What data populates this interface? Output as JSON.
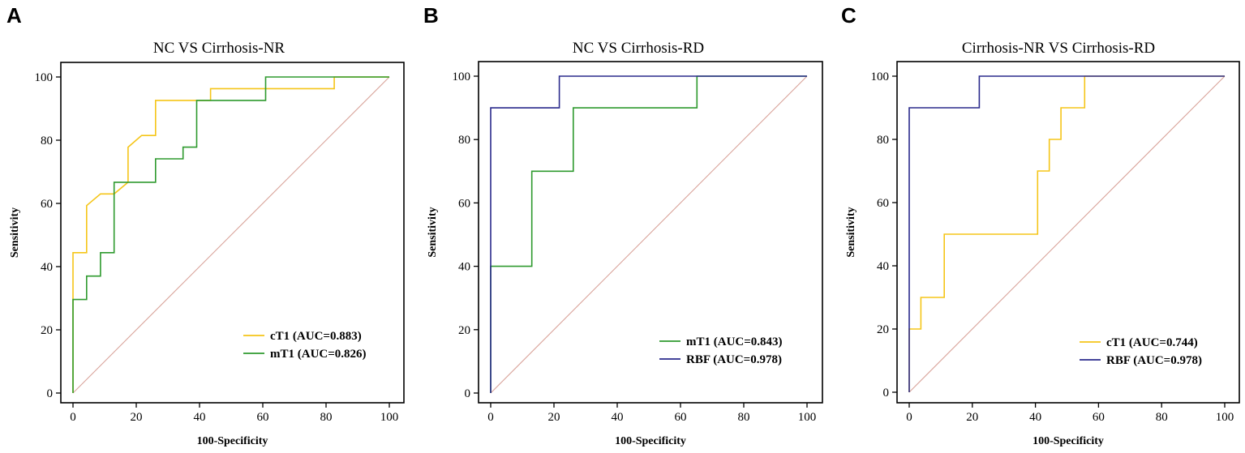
{
  "colors": {
    "cT1": "#f5c518",
    "mT1": "#2e9a2e",
    "RBF": "#2a2a8c",
    "reference": "#d9a39a",
    "axis": "#000000"
  },
  "chart_data": [
    {
      "type": "line",
      "panel": "A",
      "title": "NC VS Cirrhosis-NR",
      "xlabel": "100-Specificity",
      "ylabel": "Sensitivity",
      "xlim": [
        0,
        100
      ],
      "ylim": [
        0,
        100
      ],
      "xticks": [
        "0",
        "20",
        "40",
        "60",
        "80",
        "100"
      ],
      "yticks": [
        "0",
        "20",
        "40",
        "60",
        "80",
        "100"
      ],
      "reference_line": true,
      "series": [
        {
          "name": "cT1",
          "legend": "cT1 (AUC=0.883)",
          "color_key": "cT1",
          "points": [
            [
              0,
              0
            ],
            [
              0,
              30
            ],
            [
              0,
              44.4
            ],
            [
              4.3,
              44.4
            ],
            [
              4.3,
              59.3
            ],
            [
              8.7,
              63
            ],
            [
              13,
              63
            ],
            [
              17.4,
              66.7
            ],
            [
              17.4,
              77.8
            ],
            [
              21.7,
              81.5
            ],
            [
              26.1,
              81.5
            ],
            [
              26.1,
              92.6
            ],
            [
              43.5,
              92.6
            ],
            [
              43.5,
              96.3
            ],
            [
              82.6,
              96.3
            ],
            [
              82.6,
              100
            ],
            [
              100,
              100
            ]
          ]
        },
        {
          "name": "mT1",
          "legend": "mT1 (AUC=0.826)",
          "color_key": "mT1",
          "points": [
            [
              0,
              0
            ],
            [
              0,
              29.6
            ],
            [
              4.3,
              29.6
            ],
            [
              4.3,
              37
            ],
            [
              8.7,
              37
            ],
            [
              8.7,
              44.4
            ],
            [
              13,
              44.4
            ],
            [
              13,
              66.7
            ],
            [
              26.1,
              66.7
            ],
            [
              26.1,
              74.1
            ],
            [
              34.8,
              74.1
            ],
            [
              34.8,
              77.8
            ],
            [
              39.1,
              77.8
            ],
            [
              39.1,
              92.6
            ],
            [
              60.9,
              92.6
            ],
            [
              60.9,
              100
            ],
            [
              100,
              100
            ]
          ]
        }
      ]
    },
    {
      "type": "line",
      "panel": "B",
      "title": "NC VS Cirrhosis-RD",
      "xlabel": "100-Specificity",
      "ylabel": "Sensitivity",
      "xlim": [
        0,
        100
      ],
      "ylim": [
        0,
        100
      ],
      "xticks": [
        "0",
        "20",
        "40",
        "60",
        "80",
        "100"
      ],
      "yticks": [
        "0",
        "20",
        "40",
        "60",
        "80",
        "100"
      ],
      "reference_line": true,
      "series": [
        {
          "name": "mT1",
          "legend": "mT1 (AUC=0.843)",
          "color_key": "mT1",
          "points": [
            [
              0,
              0
            ],
            [
              0,
              40
            ],
            [
              13,
              40
            ],
            [
              13,
              70
            ],
            [
              26.1,
              70
            ],
            [
              26.1,
              90
            ],
            [
              65.2,
              90
            ],
            [
              65.2,
              100
            ],
            [
              100,
              100
            ]
          ]
        },
        {
          "name": "RBF",
          "legend": "RBF (AUC=0.978)",
          "color_key": "RBF",
          "points": [
            [
              0,
              0
            ],
            [
              0,
              90
            ],
            [
              21.7,
              90
            ],
            [
              21.7,
              100
            ],
            [
              100,
              100
            ]
          ]
        }
      ]
    },
    {
      "type": "line",
      "panel": "C",
      "title": "Cirrhosis-NR VS Cirrhosis-RD",
      "xlabel": "100-Specificity",
      "ylabel": "Sensitivity",
      "xlim": [
        0,
        100
      ],
      "ylim": [
        0,
        100
      ],
      "xticks": [
        "0",
        "20",
        "40",
        "60",
        "80",
        "100"
      ],
      "yticks": [
        "0",
        "20",
        "40",
        "60",
        "80",
        "100"
      ],
      "reference_line": true,
      "series": [
        {
          "name": "cT1",
          "legend": "cT1 (AUC=0.744)",
          "color_key": "cT1",
          "points": [
            [
              0,
              0
            ],
            [
              0,
              20
            ],
            [
              3.7,
              20
            ],
            [
              3.7,
              30
            ],
            [
              11.1,
              30
            ],
            [
              11.1,
              50
            ],
            [
              40.7,
              50
            ],
            [
              40.7,
              70
            ],
            [
              44.4,
              70
            ],
            [
              44.4,
              80
            ],
            [
              48.1,
              80
            ],
            [
              48.1,
              90
            ],
            [
              55.6,
              90
            ],
            [
              55.6,
              100
            ],
            [
              100,
              100
            ]
          ]
        },
        {
          "name": "RBF",
          "legend": "RBF (AUC=0.978)",
          "color_key": "RBF",
          "points": [
            [
              0,
              0
            ],
            [
              0,
              90
            ],
            [
              22.2,
              90
            ],
            [
              22.2,
              100
            ],
            [
              100,
              100
            ]
          ]
        }
      ]
    }
  ]
}
